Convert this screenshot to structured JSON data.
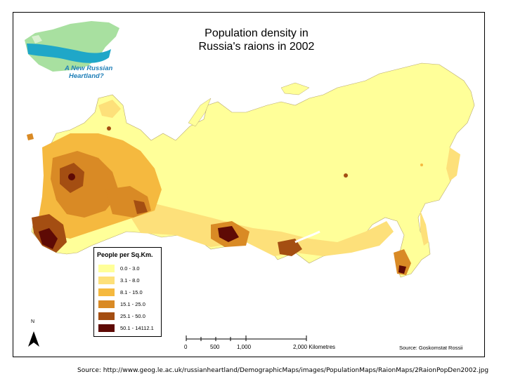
{
  "title": {
    "line1": "Population density in",
    "line2": "Russia's raions in 2002"
  },
  "logo": {
    "line1": "A New Russian",
    "line2": "Heartland?",
    "text_color": "#1f7fb8"
  },
  "legend": {
    "title": "People per Sq.Km.",
    "classes": [
      {
        "label": "0.0 - 3.0",
        "color": "#ffff99"
      },
      {
        "label": "3.1 - 8.0",
        "color": "#fde07a"
      },
      {
        "label": "8.1 - 15.0",
        "color": "#f5b93f"
      },
      {
        "label": "15.1 - 25.0",
        "color": "#d98a25"
      },
      {
        "label": "25.1 - 50.0",
        "color": "#a44e12"
      },
      {
        "label": "50.1 - 14112.1",
        "color": "#5e0a05"
      }
    ]
  },
  "north_arrow": {
    "label": "N"
  },
  "scale": {
    "ticks": [
      "0",
      "500",
      "1,000",
      "2,000 Kilometres"
    ]
  },
  "source_inset": "Source: Goskomstat Rossii",
  "source_url": "Source: http://www.geog.le.ac.uk/russianheartland/DemographicMaps/images/PopulationMaps/RaionMaps/2RaionPopDen2002.jpg"
}
